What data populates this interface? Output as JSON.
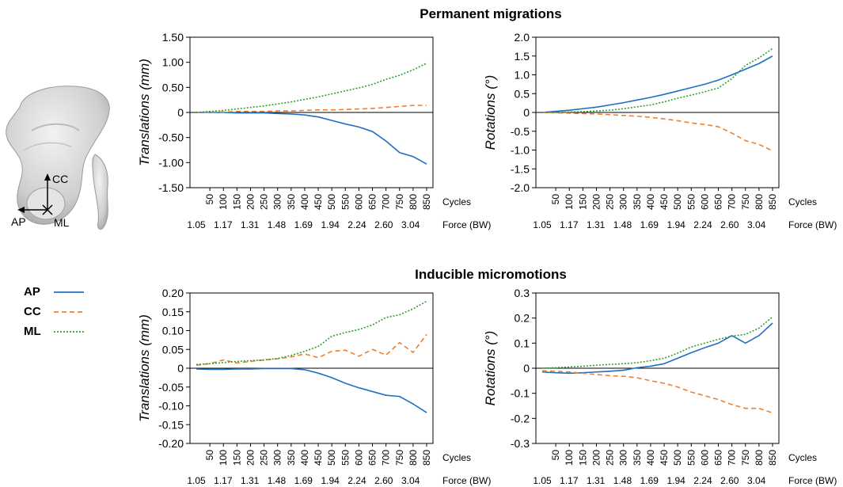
{
  "titles": {
    "top": "Permanent migrations",
    "bottom": "Inducible micromotions"
  },
  "pelvis_labels": {
    "cc": "CC",
    "ap": "AP",
    "ml": "ML"
  },
  "legend": [
    {
      "label": "AP",
      "color": "#1f6fc5",
      "dash": "solid"
    },
    {
      "label": "CC",
      "color": "#f07f30",
      "dash": "dashed"
    },
    {
      "label": "ML",
      "color": "#2ca02c",
      "dash": "dotted"
    }
  ],
  "chart_data": [
    {
      "type": "line",
      "section": "Permanent migrations",
      "ylabel": "Translations (mm)",
      "x_unit_label": "Cycles",
      "force_unit_label": "Force (BW)",
      "x": [
        0,
        50,
        100,
        150,
        200,
        250,
        300,
        350,
        400,
        450,
        500,
        550,
        600,
        650,
        700,
        750,
        800,
        850
      ],
      "x_tick_labels": [
        "50",
        "100",
        "150",
        "200",
        "250",
        "300",
        "350",
        "400",
        "450",
        "500",
        "550",
        "600",
        "650",
        "700",
        "750",
        "800",
        "850"
      ],
      "force_tick_labels": [
        "1.05",
        "1.17",
        "1.31",
        "1.48",
        "1.69",
        "1.94",
        "2.24",
        "2.60",
        "3.04"
      ],
      "ylim": [
        -1.5,
        1.5
      ],
      "yticks": [
        1.5,
        1.0,
        0.5,
        0,
        -0.5,
        -1.0,
        -1.5
      ],
      "ytick_labels": [
        "1.50",
        "1.00",
        "0.50",
        "0",
        "-0.50",
        "-1.00",
        "-1.50"
      ],
      "series": [
        {
          "name": "AP",
          "values": [
            0,
            0,
            0,
            -0.01,
            -0.01,
            -0.01,
            -0.02,
            -0.03,
            -0.05,
            -0.09,
            -0.16,
            -0.23,
            -0.29,
            -0.38,
            -0.57,
            -0.8,
            -0.88,
            -1.03
          ]
        },
        {
          "name": "CC",
          "values": [
            0,
            0.01,
            0.01,
            0.02,
            0.02,
            0.02,
            0.03,
            0.03,
            0.04,
            0.05,
            0.05,
            0.06,
            0.07,
            0.08,
            0.1,
            0.12,
            0.14,
            0.14
          ]
        },
        {
          "name": "ML",
          "values": [
            0,
            0.02,
            0.04,
            0.07,
            0.1,
            0.13,
            0.17,
            0.21,
            0.26,
            0.31,
            0.37,
            0.43,
            0.49,
            0.56,
            0.66,
            0.74,
            0.85,
            0.98
          ]
        }
      ]
    },
    {
      "type": "line",
      "section": "Permanent migrations",
      "ylabel": "Rotations (°)",
      "x_unit_label": "Cycles",
      "force_unit_label": "Force (BW)",
      "x": [
        0,
        50,
        100,
        150,
        200,
        250,
        300,
        350,
        400,
        450,
        500,
        550,
        600,
        650,
        700,
        750,
        800,
        850
      ],
      "x_tick_labels": [
        "50",
        "100",
        "150",
        "200",
        "250",
        "300",
        "350",
        "400",
        "450",
        "500",
        "550",
        "600",
        "650",
        "700",
        "750",
        "800",
        "850"
      ],
      "force_tick_labels": [
        "1.05",
        "1.17",
        "1.31",
        "1.48",
        "1.69",
        "1.94",
        "2.24",
        "2.60",
        "3.04"
      ],
      "ylim": [
        -2.0,
        2.0
      ],
      "yticks": [
        2.0,
        1.5,
        1.0,
        0.5,
        0,
        -0.5,
        -1.0,
        -1.5,
        -2.0
      ],
      "ytick_labels": [
        "2.0",
        "1.5",
        "1.0",
        "0.5",
        "0",
        "-0.5",
        "-1.0",
        "-1.5",
        "-2.0"
      ],
      "series": [
        {
          "name": "AP",
          "values": [
            0,
            0.03,
            0.06,
            0.1,
            0.14,
            0.2,
            0.26,
            0.33,
            0.4,
            0.48,
            0.57,
            0.66,
            0.75,
            0.86,
            1.0,
            1.15,
            1.3,
            1.5
          ]
        },
        {
          "name": "CC",
          "values": [
            0,
            -0.01,
            -0.02,
            -0.03,
            -0.04,
            -0.06,
            -0.08,
            -0.1,
            -0.13,
            -0.17,
            -0.22,
            -0.28,
            -0.32,
            -0.38,
            -0.55,
            -0.75,
            -0.85,
            -1.02
          ]
        },
        {
          "name": "ML",
          "values": [
            0,
            0,
            0.01,
            0.02,
            0.04,
            0.06,
            0.1,
            0.15,
            0.2,
            0.28,
            0.38,
            0.46,
            0.55,
            0.65,
            0.9,
            1.25,
            1.45,
            1.7
          ]
        }
      ]
    },
    {
      "type": "line",
      "section": "Inducible micromotions",
      "ylabel": "Translations (mm)",
      "x_unit_label": "Cycles",
      "force_unit_label": "Force (BW)",
      "x": [
        0,
        50,
        100,
        150,
        200,
        250,
        300,
        350,
        400,
        450,
        500,
        550,
        600,
        650,
        700,
        750,
        800,
        850
      ],
      "x_tick_labels": [
        "50",
        "100",
        "150",
        "200",
        "250",
        "300",
        "350",
        "400",
        "450",
        "500",
        "550",
        "600",
        "650",
        "700",
        "750",
        "800",
        "850"
      ],
      "force_tick_labels": [
        "1.05",
        "1.17",
        "1.31",
        "1.48",
        "1.69",
        "1.94",
        "2.24",
        "2.60",
        "3.04"
      ],
      "ylim": [
        -0.2,
        0.2
      ],
      "yticks": [
        0.2,
        0.15,
        0.1,
        0.05,
        0,
        -0.05,
        -0.1,
        -0.15,
        -0.2
      ],
      "ytick_labels": [
        "0.20",
        "0.15",
        "0.10",
        "0.05",
        "0",
        "-0.05",
        "-0.10",
        "-0.15",
        "-0.20"
      ],
      "series": [
        {
          "name": "AP",
          "values": [
            -0.002,
            -0.003,
            -0.003,
            -0.002,
            -0.002,
            -0.001,
            -0.001,
            -0.001,
            -0.004,
            -0.013,
            -0.025,
            -0.04,
            -0.052,
            -0.062,
            -0.072,
            -0.075,
            -0.095,
            -0.118
          ]
        },
        {
          "name": "CC",
          "values": [
            0.008,
            0.012,
            0.022,
            0.014,
            0.018,
            0.022,
            0.025,
            0.03,
            0.038,
            0.028,
            0.045,
            0.048,
            0.032,
            0.05,
            0.035,
            0.068,
            0.042,
            0.09
          ]
        },
        {
          "name": "ML",
          "values": [
            0.01,
            0.012,
            0.015,
            0.018,
            0.02,
            0.022,
            0.026,
            0.034,
            0.045,
            0.058,
            0.085,
            0.095,
            0.103,
            0.115,
            0.135,
            0.142,
            0.158,
            0.178
          ]
        }
      ]
    },
    {
      "type": "line",
      "section": "Inducible micromotions",
      "ylabel": "Rotations (°)",
      "x_unit_label": "Cycles",
      "force_unit_label": "Force (BW)",
      "x": [
        0,
        50,
        100,
        150,
        200,
        250,
        300,
        350,
        400,
        450,
        500,
        550,
        600,
        650,
        700,
        750,
        800,
        850
      ],
      "x_tick_labels": [
        "50",
        "100",
        "150",
        "200",
        "250",
        "300",
        "350",
        "400",
        "450",
        "500",
        "550",
        "600",
        "650",
        "700",
        "750",
        "800",
        "850"
      ],
      "force_tick_labels": [
        "1.05",
        "1.17",
        "1.31",
        "1.48",
        "1.69",
        "1.94",
        "2.24",
        "2.60",
        "3.04"
      ],
      "ylim": [
        -0.3,
        0.3
      ],
      "yticks": [
        0.3,
        0.2,
        0.1,
        0,
        -0.1,
        -0.2,
        -0.3
      ],
      "ytick_labels": [
        "0.3",
        "0.2",
        "0.1",
        "0",
        "-0.1",
        "-0.2",
        "-0.3"
      ],
      "series": [
        {
          "name": "AP",
          "values": [
            -0.015,
            -0.018,
            -0.02,
            -0.018,
            -0.015,
            -0.012,
            -0.008,
            0.002,
            0.008,
            0.018,
            0.04,
            0.062,
            0.082,
            0.1,
            0.13,
            0.1,
            0.13,
            0.18
          ]
        },
        {
          "name": "CC",
          "values": [
            -0.01,
            -0.012,
            -0.015,
            -0.02,
            -0.025,
            -0.03,
            -0.032,
            -0.038,
            -0.05,
            -0.06,
            -0.075,
            -0.095,
            -0.11,
            -0.125,
            -0.145,
            -0.16,
            -0.16,
            -0.178
          ]
        },
        {
          "name": "ML",
          "values": [
            0,
            0.002,
            0.005,
            0.008,
            0.012,
            0.015,
            0.018,
            0.022,
            0.03,
            0.04,
            0.06,
            0.085,
            0.1,
            0.115,
            0.128,
            0.135,
            0.16,
            0.205
          ]
        }
      ]
    }
  ]
}
